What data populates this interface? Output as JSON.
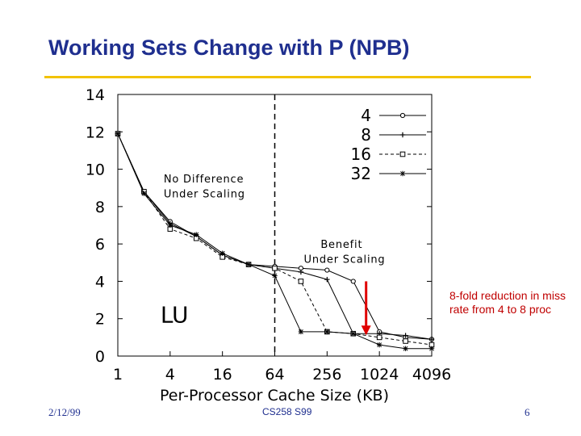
{
  "slide": {
    "title": "Working Sets Change with P (NPB)",
    "note": "8-fold reduction in miss rate from 4 to 8 proc",
    "footer_date": "2/12/99",
    "footer_course": "CS258 S99",
    "footer_page": "6"
  },
  "colors": {
    "title": "#1f2f8f",
    "rule": "#f2c200",
    "note": "#c00000",
    "arrow": "#e00000"
  },
  "chart_data": {
    "type": "line",
    "title": "",
    "xlabel": "Per-Processor Cache Size (KB)",
    "ylabel": "",
    "x_scale": "log2",
    "xlim": [
      1,
      4096
    ],
    "ylim": [
      0,
      14
    ],
    "x_ticks": [
      1,
      4,
      16,
      64,
      256,
      1024,
      4096
    ],
    "x_tick_labels": [
      "1",
      "4",
      "16",
      "64",
      "256",
      "1024",
      "4096"
    ],
    "y_ticks": [
      0,
      2,
      4,
      6,
      8,
      10,
      12,
      14
    ],
    "y_tick_labels": [
      "0",
      "2",
      "4",
      "6",
      "8",
      "10",
      "12",
      "14"
    ],
    "legend_position": "top-right",
    "vertical_reference_line_x": 64,
    "series": [
      {
        "name": "4",
        "marker": "circle",
        "dash": "solid",
        "x": [
          1,
          2,
          4,
          8,
          16,
          32,
          64,
          128,
          256,
          512,
          1024,
          2048,
          4096
        ],
        "y": [
          11.9,
          8.8,
          7.2,
          6.4,
          5.4,
          4.9,
          4.8,
          4.7,
          4.6,
          4.0,
          1.3,
          1.0,
          0.9
        ]
      },
      {
        "name": "8",
        "marker": "plus",
        "dash": "solid",
        "x": [
          1,
          2,
          4,
          8,
          16,
          32,
          64,
          128,
          256,
          512,
          1024,
          2048,
          4096
        ],
        "y": [
          11.9,
          8.8,
          7.1,
          6.4,
          5.4,
          4.9,
          4.7,
          4.5,
          4.1,
          1.2,
          1.2,
          1.1,
          0.9
        ]
      },
      {
        "name": "16",
        "marker": "square",
        "dash": "dashed",
        "x": [
          1,
          2,
          4,
          8,
          16,
          32,
          64,
          128,
          256,
          512,
          1024,
          2048,
          4096
        ],
        "y": [
          11.9,
          8.8,
          6.8,
          6.3,
          5.3,
          4.9,
          4.7,
          4.0,
          1.3,
          1.2,
          1.0,
          0.8,
          0.6
        ]
      },
      {
        "name": "32",
        "marker": "star",
        "dash": "solid",
        "x": [
          1,
          2,
          4,
          8,
          16,
          32,
          64,
          128,
          256,
          512,
          1024,
          2048,
          4096
        ],
        "y": [
          11.9,
          8.7,
          7.0,
          6.5,
          5.5,
          4.9,
          4.3,
          1.3,
          1.3,
          1.2,
          0.6,
          0.4,
          0.4
        ]
      }
    ],
    "annotations": [
      {
        "text": "No Difference",
        "x": 4,
        "y": 9.3
      },
      {
        "text": "Under Scaling",
        "x": 4,
        "y": 8.5
      },
      {
        "text": "Benefit",
        "x": 256,
        "y": 5.8
      },
      {
        "text": "Under Scaling",
        "x": 164,
        "y": 5.0
      },
      {
        "text": "LU",
        "x": 4,
        "y": 1.8
      }
    ],
    "arrow": {
      "x": 720,
      "y_from": 4.0,
      "y_to": 1.2
    }
  }
}
